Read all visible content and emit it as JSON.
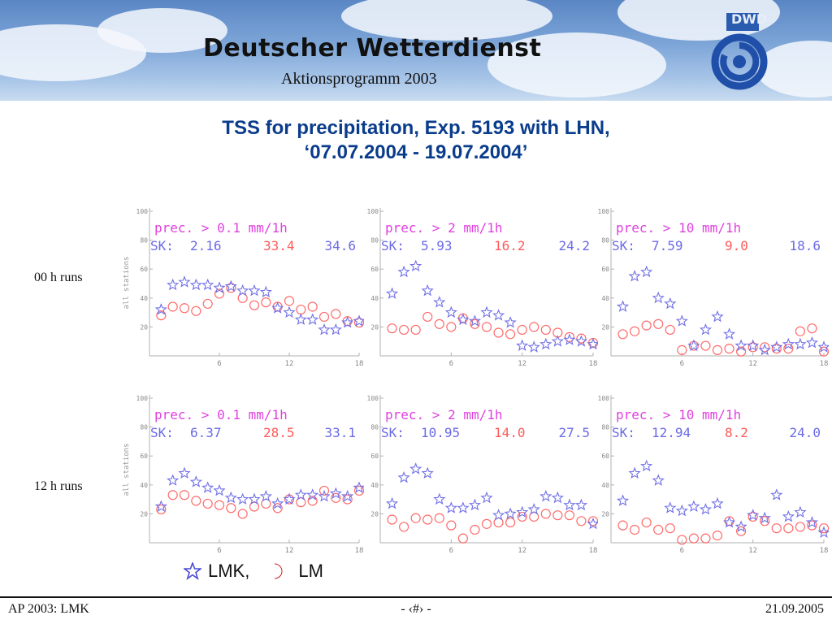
{
  "header": {
    "org_name": "Deutscher Wetterdienst",
    "subtitle": "Aktionsprogramm 2003",
    "logo_text": "DWD"
  },
  "slide": {
    "title_line1": "TSS for precipitation, Exp. 5193 with LHN,",
    "title_line2": "‘07.07.2004 - 19.07.2004’"
  },
  "rows": [
    {
      "label": "00 h runs"
    },
    {
      "label": "12 h runs"
    }
  ],
  "legend": {
    "lmk_label": "LMK,",
    "lm_label": "LM",
    "lmk_color": "#4a4ad8",
    "lm_color": "#cc2222"
  },
  "footer": {
    "left": "AP 2003: LMK",
    "center": "- ‹#› -",
    "right": "21.09.2005"
  },
  "colors": {
    "title": "#0a3c8c",
    "prec_text": "#e040e0",
    "sk_text": "#6a6ae6",
    "lm_value": "#ff5a5a",
    "lmk_marker": "#7070e8",
    "lm_marker": "#ff6a6a",
    "axis": "#b0b0b0"
  },
  "chart_data": [
    {
      "type": "scatter",
      "run": "00 h runs",
      "panel": 1,
      "ylabel": "all stations",
      "threshold_label": "prec. > 0.1 mm/1h",
      "sk_label": "SK:",
      "sk_lmk": "2.16",
      "sk_lm": "33.4",
      "sk_lmk2": "34.6",
      "xlim": [
        0,
        18
      ],
      "ylim": [
        0,
        100
      ],
      "xticks": [
        "6",
        "12",
        "18"
      ],
      "yticks": [
        "100",
        "80",
        "60",
        "40",
        "20"
      ],
      "x": [
        1,
        2,
        3,
        4,
        5,
        6,
        7,
        8,
        9,
        10,
        11,
        12,
        13,
        14,
        15,
        16,
        17,
        18
      ],
      "series": [
        {
          "name": "LMK",
          "values": [
            32,
            49,
            51,
            49,
            49,
            47,
            48,
            45,
            45,
            44,
            33,
            30,
            25,
            25,
            18,
            18,
            23,
            24
          ]
        },
        {
          "name": "LM",
          "values": [
            28,
            34,
            33,
            31,
            36,
            43,
            47,
            40,
            35,
            37,
            34,
            38,
            32,
            34,
            27,
            29,
            24,
            23
          ]
        }
      ]
    },
    {
      "type": "scatter",
      "run": "00 h runs",
      "panel": 2,
      "threshold_label": "prec. > 2 mm/1h",
      "sk_label": "SK:",
      "sk_lmk": "5.93",
      "sk_lm": "16.2",
      "sk_lmk2": "24.2",
      "xlim": [
        0,
        18
      ],
      "ylim": [
        0,
        100
      ],
      "xticks": [
        "6",
        "12",
        "18"
      ],
      "yticks": [
        "100",
        "80",
        "60",
        "40",
        "20"
      ],
      "x": [
        1,
        2,
        3,
        4,
        5,
        6,
        7,
        8,
        9,
        10,
        11,
        12,
        13,
        14,
        15,
        16,
        17,
        18
      ],
      "series": [
        {
          "name": "LMK",
          "values": [
            43,
            58,
            62,
            45,
            37,
            30,
            25,
            24,
            30,
            28,
            23,
            7,
            6,
            8,
            10,
            11,
            10,
            8
          ]
        },
        {
          "name": "LM",
          "values": [
            19,
            18,
            18,
            27,
            22,
            20,
            26,
            22,
            20,
            16,
            15,
            18,
            20,
            18,
            16,
            13,
            12,
            9
          ]
        }
      ]
    },
    {
      "type": "scatter",
      "run": "00 h runs",
      "panel": 3,
      "threshold_label": "prec. > 10 mm/1h",
      "sk_label": "SK:",
      "sk_lmk": "7.59",
      "sk_lm": "9.0",
      "sk_lmk2": "18.6",
      "xlim": [
        0,
        18
      ],
      "ylim": [
        0,
        100
      ],
      "xticks": [
        "6",
        "12",
        "18"
      ],
      "yticks": [
        "100",
        "80",
        "60",
        "40",
        "20"
      ],
      "x": [
        1,
        2,
        3,
        4,
        5,
        6,
        7,
        8,
        9,
        10,
        11,
        12,
        13,
        14,
        15,
        16,
        17,
        18
      ],
      "series": [
        {
          "name": "LMK",
          "values": [
            34,
            55,
            58,
            40,
            36,
            24,
            7,
            18,
            27,
            15,
            7,
            7,
            4,
            6,
            8,
            8,
            9,
            6
          ]
        },
        {
          "name": "LM",
          "values": [
            15,
            17,
            21,
            22,
            18,
            4,
            7,
            7,
            4,
            5,
            3,
            6,
            6,
            5,
            5,
            17,
            19,
            3
          ]
        }
      ]
    },
    {
      "type": "scatter",
      "run": "12 h runs",
      "panel": 1,
      "ylabel": "all stations",
      "threshold_label": "prec. > 0.1 mm/1h",
      "sk_label": "SK:",
      "sk_lmk": "6.37",
      "sk_lm": "28.5",
      "sk_lmk2": "33.1",
      "xlim": [
        0,
        18
      ],
      "ylim": [
        0,
        100
      ],
      "xticks": [
        "6",
        "12",
        "18"
      ],
      "yticks": [
        "100",
        "80",
        "60",
        "40",
        "20"
      ],
      "x": [
        1,
        2,
        3,
        4,
        5,
        6,
        7,
        8,
        9,
        10,
        11,
        12,
        13,
        14,
        15,
        16,
        17,
        18
      ],
      "series": [
        {
          "name": "LMK",
          "values": [
            25,
            43,
            48,
            42,
            38,
            36,
            31,
            30,
            30,
            32,
            27,
            30,
            33,
            33,
            32,
            34,
            32,
            38
          ]
        },
        {
          "name": "LM",
          "values": [
            23,
            33,
            33,
            29,
            27,
            26,
            24,
            20,
            25,
            27,
            24,
            30,
            28,
            29,
            36,
            31,
            30,
            36
          ]
        }
      ]
    },
    {
      "type": "scatter",
      "run": "12 h runs",
      "panel": 2,
      "threshold_label": "prec. > 2 mm/1h",
      "sk_label": "SK:",
      "sk_lmk": "10.95",
      "sk_lm": "14.0",
      "sk_lmk2": "27.5",
      "xlim": [
        0,
        18
      ],
      "ylim": [
        0,
        100
      ],
      "xticks": [
        "6",
        "12",
        "18"
      ],
      "yticks": [
        "100",
        "80",
        "60",
        "40",
        "20"
      ],
      "x": [
        1,
        2,
        3,
        4,
        5,
        6,
        7,
        8,
        9,
        10,
        11,
        12,
        13,
        14,
        15,
        16,
        17,
        18
      ],
      "series": [
        {
          "name": "LMK",
          "values": [
            27,
            45,
            51,
            48,
            30,
            24,
            24,
            26,
            31,
            19,
            20,
            21,
            23,
            32,
            31,
            26,
            26,
            13
          ]
        },
        {
          "name": "LM",
          "values": [
            16,
            11,
            17,
            16,
            17,
            12,
            3,
            9,
            13,
            14,
            14,
            18,
            18,
            20,
            19,
            19,
            15,
            15
          ]
        }
      ]
    },
    {
      "type": "scatter",
      "run": "12 h runs",
      "panel": 3,
      "threshold_label": "prec. > 10 mm/1h",
      "sk_label": "SK:",
      "sk_lmk": "12.94",
      "sk_lm": "8.2",
      "sk_lmk2": "24.0",
      "xlim": [
        0,
        18
      ],
      "ylim": [
        0,
        100
      ],
      "xticks": [
        "6",
        "12",
        "18"
      ],
      "yticks": [
        "100",
        "80",
        "60",
        "40",
        "20"
      ],
      "x": [
        1,
        2,
        3,
        4,
        5,
        6,
        7,
        8,
        9,
        10,
        11,
        12,
        13,
        14,
        15,
        16,
        17,
        18
      ],
      "series": [
        {
          "name": "LMK",
          "values": [
            29,
            48,
            53,
            43,
            24,
            22,
            25,
            23,
            27,
            14,
            11,
            19,
            17,
            33,
            18,
            21,
            14,
            7
          ]
        },
        {
          "name": "LM",
          "values": [
            12,
            9,
            14,
            9,
            10,
            2,
            3,
            3,
            5,
            15,
            8,
            18,
            15,
            10,
            10,
            11,
            12,
            10
          ]
        }
      ]
    }
  ]
}
